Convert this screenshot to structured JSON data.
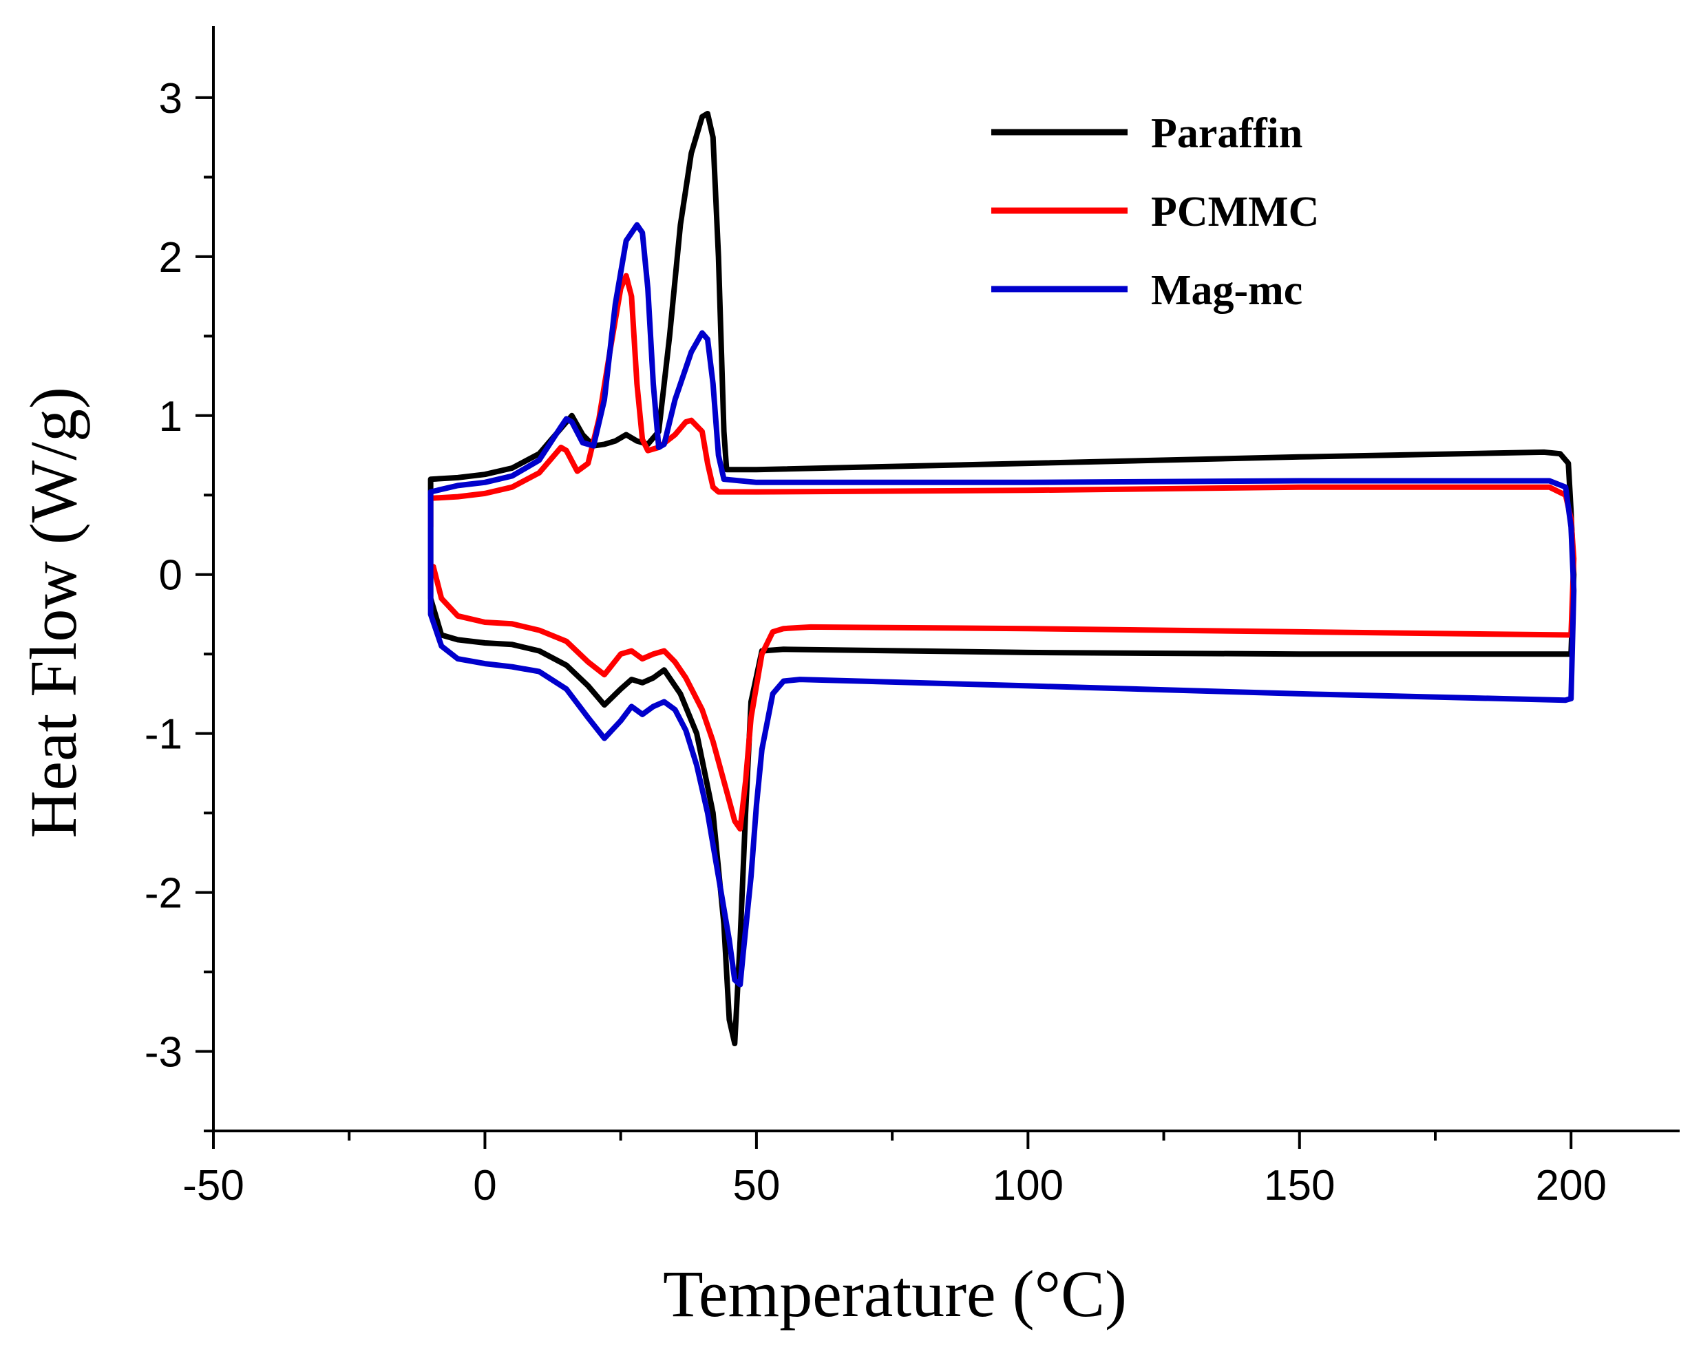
{
  "chart_data": {
    "type": "line",
    "title": "",
    "xlabel": "Temperature (°C)",
    "ylabel": "Heat Flow (W/g)",
    "xlim": [
      -50,
      220
    ],
    "ylim": [
      -3.5,
      3.45
    ],
    "xticks": [
      -50,
      0,
      50,
      100,
      150,
      200
    ],
    "xtick_labels": [
      "-50",
      "0",
      "50",
      "100",
      "150",
      "200"
    ],
    "yticks": [
      -3,
      -2,
      -1,
      0,
      1,
      2,
      3
    ],
    "ytick_labels": [
      "-3",
      "-2",
      "-1",
      "0",
      "1",
      "2",
      "3"
    ],
    "grid": false,
    "legend_position": "top-right",
    "series": [
      {
        "name": "Paraffin",
        "color": "#000000",
        "heating": [
          [
            -10,
            0.6
          ],
          [
            -5,
            0.61
          ],
          [
            0,
            0.63
          ],
          [
            5,
            0.67
          ],
          [
            10,
            0.76
          ],
          [
            14,
            0.92
          ],
          [
            16,
            1.0
          ],
          [
            18,
            0.88
          ],
          [
            20,
            0.81
          ],
          [
            22,
            0.82
          ],
          [
            24,
            0.84
          ],
          [
            26,
            0.88
          ],
          [
            28,
            0.84
          ],
          [
            30,
            0.82
          ],
          [
            32,
            0.9
          ],
          [
            34,
            1.5
          ],
          [
            36,
            2.2
          ],
          [
            38,
            2.65
          ],
          [
            40,
            2.88
          ],
          [
            41,
            2.9
          ],
          [
            42,
            2.75
          ],
          [
            43,
            2.0
          ],
          [
            44,
            0.9
          ],
          [
            44.5,
            0.66
          ],
          [
            50,
            0.66
          ],
          [
            100,
            0.7
          ],
          [
            150,
            0.74
          ],
          [
            195,
            0.77
          ],
          [
            198,
            0.76
          ],
          [
            199.5,
            0.7
          ],
          [
            200,
            0.4
          ],
          [
            200.5,
            0.0
          ]
        ],
        "cooling": [
          [
            200,
            -0.5
          ],
          [
            150,
            -0.5
          ],
          [
            100,
            -0.49
          ],
          [
            55,
            -0.47
          ],
          [
            51,
            -0.48
          ],
          [
            49,
            -0.8
          ],
          [
            48,
            -1.5
          ],
          [
            47,
            -2.3
          ],
          [
            46,
            -2.95
          ],
          [
            45,
            -2.8
          ],
          [
            44,
            -2.2
          ],
          [
            42,
            -1.5
          ],
          [
            39,
            -1.0
          ],
          [
            36,
            -0.75
          ],
          [
            33,
            -0.6
          ],
          [
            31,
            -0.65
          ],
          [
            29,
            -0.68
          ],
          [
            27,
            -0.66
          ],
          [
            25,
            -0.72
          ],
          [
            22,
            -0.82
          ],
          [
            19,
            -0.7
          ],
          [
            15,
            -0.57
          ],
          [
            10,
            -0.48
          ],
          [
            5,
            -0.44
          ],
          [
            0,
            -0.43
          ],
          [
            -5,
            -0.41
          ],
          [
            -8,
            -0.38
          ],
          [
            -10,
            -0.15
          ],
          [
            -10,
            0.2
          ],
          [
            -10,
            0.6
          ]
        ]
      },
      {
        "name": "PCMMC",
        "color": "#ff0000",
        "heating": [
          [
            -10,
            0.3
          ],
          [
            -10,
            0.48
          ],
          [
            -5,
            0.49
          ],
          [
            0,
            0.51
          ],
          [
            5,
            0.55
          ],
          [
            10,
            0.64
          ],
          [
            14,
            0.8
          ],
          [
            15,
            0.78
          ],
          [
            17,
            0.65
          ],
          [
            19,
            0.7
          ],
          [
            21,
            0.98
          ],
          [
            23,
            1.4
          ],
          [
            25,
            1.8
          ],
          [
            26,
            1.88
          ],
          [
            27,
            1.75
          ],
          [
            28,
            1.2
          ],
          [
            29,
            0.85
          ],
          [
            30,
            0.78
          ],
          [
            32,
            0.8
          ],
          [
            35,
            0.88
          ],
          [
            37,
            0.96
          ],
          [
            38,
            0.97
          ],
          [
            40,
            0.9
          ],
          [
            41,
            0.7
          ],
          [
            42,
            0.55
          ],
          [
            43,
            0.52
          ],
          [
            50,
            0.52
          ],
          [
            100,
            0.53
          ],
          [
            150,
            0.55
          ],
          [
            196,
            0.55
          ],
          [
            199,
            0.5
          ],
          [
            200,
            0.35
          ],
          [
            200.5,
            0.1
          ]
        ],
        "cooling": [
          [
            200,
            -0.38
          ],
          [
            150,
            -0.36
          ],
          [
            100,
            -0.34
          ],
          [
            60,
            -0.33
          ],
          [
            55,
            -0.34
          ],
          [
            53,
            -0.36
          ],
          [
            51,
            -0.5
          ],
          [
            49,
            -0.9
          ],
          [
            48,
            -1.3
          ],
          [
            47,
            -1.6
          ],
          [
            46,
            -1.55
          ],
          [
            44,
            -1.3
          ],
          [
            42,
            -1.05
          ],
          [
            40,
            -0.85
          ],
          [
            37,
            -0.65
          ],
          [
            35,
            -0.55
          ],
          [
            33,
            -0.48
          ],
          [
            31,
            -0.5
          ],
          [
            29,
            -0.53
          ],
          [
            27,
            -0.48
          ],
          [
            25,
            -0.5
          ],
          [
            22,
            -0.63
          ],
          [
            19,
            -0.55
          ],
          [
            15,
            -0.42
          ],
          [
            10,
            -0.35
          ],
          [
            5,
            -0.31
          ],
          [
            0,
            -0.3
          ],
          [
            -5,
            -0.26
          ],
          [
            -8,
            -0.15
          ],
          [
            -9.5,
            0.05
          ]
        ]
      },
      {
        "name": "Mag-mc",
        "color": "#0000cc",
        "heating": [
          [
            -10,
            0.52
          ],
          [
            -5,
            0.56
          ],
          [
            0,
            0.58
          ],
          [
            5,
            0.62
          ],
          [
            10,
            0.72
          ],
          [
            14,
            0.93
          ],
          [
            15,
            0.98
          ],
          [
            16,
            0.96
          ],
          [
            18,
            0.83
          ],
          [
            20,
            0.81
          ],
          [
            22,
            1.1
          ],
          [
            24,
            1.7
          ],
          [
            26,
            2.1
          ],
          [
            28,
            2.2
          ],
          [
            29,
            2.15
          ],
          [
            30,
            1.8
          ],
          [
            31,
            1.2
          ],
          [
            32,
            0.8
          ],
          [
            33,
            0.82
          ],
          [
            35,
            1.1
          ],
          [
            38,
            1.4
          ],
          [
            40,
            1.52
          ],
          [
            41,
            1.48
          ],
          [
            42,
            1.2
          ],
          [
            43,
            0.75
          ],
          [
            44,
            0.6
          ],
          [
            50,
            0.58
          ],
          [
            100,
            0.58
          ],
          [
            150,
            0.59
          ],
          [
            196,
            0.59
          ],
          [
            199,
            0.55
          ],
          [
            200,
            0.3
          ],
          [
            200.5,
            -0.1
          ]
        ],
        "cooling": [
          [
            200,
            -0.78
          ],
          [
            199,
            -0.79
          ],
          [
            150,
            -0.75
          ],
          [
            100,
            -0.7
          ],
          [
            58,
            -0.66
          ],
          [
            55,
            -0.67
          ],
          [
            53,
            -0.75
          ],
          [
            51,
            -1.1
          ],
          [
            50,
            -1.45
          ],
          [
            49,
            -1.9
          ],
          [
            47.5,
            -2.4
          ],
          [
            47,
            -2.58
          ],
          [
            46,
            -2.55
          ],
          [
            45,
            -2.3
          ],
          [
            43,
            -1.9
          ],
          [
            41,
            -1.5
          ],
          [
            39,
            -1.2
          ],
          [
            37,
            -0.98
          ],
          [
            35,
            -0.85
          ],
          [
            33,
            -0.8
          ],
          [
            31,
            -0.83
          ],
          [
            29,
            -0.88
          ],
          [
            27,
            -0.83
          ],
          [
            25,
            -0.92
          ],
          [
            22,
            -1.03
          ],
          [
            19,
            -0.9
          ],
          [
            15,
            -0.72
          ],
          [
            10,
            -0.61
          ],
          [
            5,
            -0.58
          ],
          [
            0,
            -0.56
          ],
          [
            -5,
            -0.53
          ],
          [
            -8,
            -0.45
          ],
          [
            -10,
            -0.25
          ],
          [
            -10,
            0.1
          ],
          [
            -10,
            0.52
          ]
        ]
      }
    ]
  }
}
